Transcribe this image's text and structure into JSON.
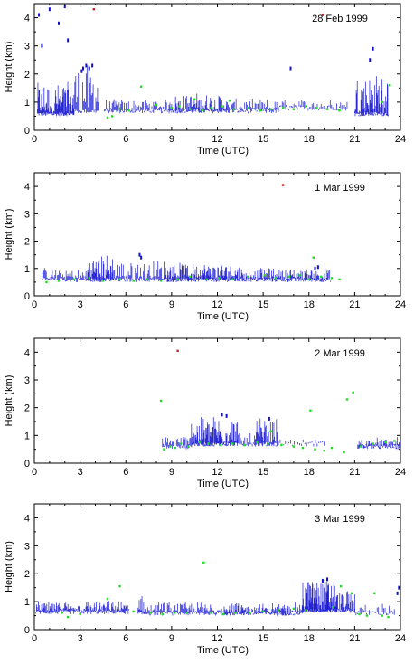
{
  "colors": {
    "cloud_base": "#1010d0",
    "secondary": "#22dd22",
    "outlier": "#cc2222",
    "axis": "#000000"
  },
  "chart_data": [
    {
      "type": "scatter",
      "title": "28 Feb 1999",
      "xlabel": "Time (UTC)",
      "ylabel": "Height (km)",
      "xlim": [
        0,
        24
      ],
      "ylim": [
        0,
        4.5
      ],
      "xticks": [
        0,
        3,
        6,
        9,
        12,
        15,
        18,
        21,
        24
      ],
      "yticks": [
        0,
        1,
        2,
        3,
        4
      ],
      "grid": false,
      "series": [
        {
          "key": "lidar",
          "color": "#1010d0",
          "style": "streak",
          "segments": [
            {
              "start": 0.2,
              "end": 2.6,
              "base": 0.5,
              "top": 1.6,
              "density": 10
            },
            {
              "start": 2.6,
              "end": 4.2,
              "base": 0.6,
              "top": 2.3,
              "density": 6
            },
            {
              "start": 4.6,
              "end": 9.0,
              "base": 0.6,
              "top": 1.0,
              "density": 6
            },
            {
              "start": 9.0,
              "end": 12.6,
              "base": 0.6,
              "top": 1.2,
              "density": 8
            },
            {
              "start": 12.6,
              "end": 16.0,
              "base": 0.6,
              "top": 1.0,
              "density": 6
            },
            {
              "start": 16.0,
              "end": 20.5,
              "base": 0.7,
              "top": 1.0,
              "density": 4
            },
            {
              "start": 21.0,
              "end": 23.2,
              "base": 0.5,
              "top": 1.9,
              "density": 10
            }
          ],
          "points": [
            [
              0.3,
              4.1
            ],
            [
              0.5,
              3.0
            ],
            [
              1.0,
              4.3
            ],
            [
              1.6,
              3.8
            ],
            [
              2.0,
              4.4
            ],
            [
              2.2,
              3.2
            ],
            [
              3.2,
              2.2
            ],
            [
              3.4,
              2.3
            ],
            [
              3.6,
              2.2
            ],
            [
              3.8,
              2.3
            ],
            [
              3.1,
              2.1
            ],
            [
              16.8,
              2.2
            ],
            [
              22.0,
              2.5
            ],
            [
              22.2,
              2.9
            ]
          ]
        },
        {
          "key": "ceilometer",
          "color": "#22dd22",
          "style": "dot",
          "points": [
            [
              4.8,
              0.45
            ],
            [
              5.1,
              0.5
            ],
            [
              5.6,
              0.75
            ],
            [
              6.2,
              0.7
            ],
            [
              7.0,
              1.55
            ],
            [
              8.0,
              0.9
            ],
            [
              9.0,
              0.8
            ],
            [
              9.5,
              0.85
            ],
            [
              10.2,
              0.75
            ],
            [
              11.0,
              0.7
            ],
            [
              11.6,
              0.8
            ],
            [
              12.3,
              0.85
            ],
            [
              13.1,
              0.75
            ],
            [
              14.0,
              0.8
            ],
            [
              14.8,
              0.7
            ],
            [
              15.5,
              0.75
            ],
            [
              16.3,
              0.8
            ],
            [
              17.0,
              0.75
            ],
            [
              17.8,
              0.85
            ],
            [
              18.5,
              0.8
            ],
            [
              19.2,
              0.75
            ],
            [
              20.0,
              0.7
            ],
            [
              22.8,
              1.0
            ],
            [
              23.3,
              1.6
            ],
            [
              10.5,
              1.1
            ],
            [
              12.8,
              1.05
            ]
          ]
        },
        {
          "key": "outlier",
          "color": "#cc2222",
          "style": "dot",
          "points": [
            [
              3.9,
              4.3
            ],
            [
              18.9,
              4.1
            ]
          ]
        }
      ]
    },
    {
      "type": "scatter",
      "title": "1 Mar 1999",
      "xlabel": "Time (UTC)",
      "ylabel": "Height (km)",
      "xlim": [
        0,
        24
      ],
      "ylim": [
        0,
        4.5
      ],
      "xticks": [
        0,
        3,
        6,
        9,
        12,
        15,
        18,
        21,
        24
      ],
      "yticks": [
        0,
        1,
        2,
        3,
        4
      ],
      "grid": false,
      "series": [
        {
          "key": "lidar",
          "color": "#1010d0",
          "style": "streak",
          "segments": [
            {
              "start": 0.5,
              "end": 3.5,
              "base": 0.5,
              "top": 0.9,
              "density": 6
            },
            {
              "start": 3.5,
              "end": 5.2,
              "base": 0.5,
              "top": 1.4,
              "density": 10
            },
            {
              "start": 5.2,
              "end": 8.5,
              "base": 0.5,
              "top": 1.2,
              "density": 6
            },
            {
              "start": 8.5,
              "end": 13.5,
              "base": 0.5,
              "top": 1.1,
              "density": 10
            },
            {
              "start": 13.5,
              "end": 19.4,
              "base": 0.5,
              "top": 0.9,
              "density": 8
            }
          ],
          "points": [
            [
              6.9,
              1.5
            ],
            [
              7.0,
              1.4
            ],
            [
              18.4,
              1.0
            ],
            [
              18.6,
              1.05
            ]
          ]
        },
        {
          "key": "ceilometer",
          "color": "#22dd22",
          "style": "dot",
          "points": [
            [
              0.8,
              0.5
            ],
            [
              1.6,
              0.55
            ],
            [
              2.6,
              0.6
            ],
            [
              3.6,
              0.65
            ],
            [
              4.5,
              0.55
            ],
            [
              5.6,
              0.6
            ],
            [
              6.5,
              0.55
            ],
            [
              7.4,
              0.6
            ],
            [
              8.3,
              0.55
            ],
            [
              9.4,
              0.6
            ],
            [
              10.2,
              0.7
            ],
            [
              11.3,
              0.6
            ],
            [
              12.1,
              0.65
            ],
            [
              13.0,
              0.6
            ],
            [
              14.0,
              0.7
            ],
            [
              15.1,
              0.75
            ],
            [
              15.8,
              0.65
            ],
            [
              16.7,
              0.7
            ],
            [
              17.4,
              0.75
            ],
            [
              18.0,
              0.6
            ],
            [
              18.3,
              1.4
            ],
            [
              18.8,
              0.7
            ],
            [
              19.5,
              0.65
            ],
            [
              20.0,
              0.6
            ]
          ]
        },
        {
          "key": "outlier",
          "color": "#cc2222",
          "style": "dot",
          "points": [
            [
              16.3,
              4.05
            ]
          ]
        }
      ]
    },
    {
      "type": "scatter",
      "title": "2 Mar 1999",
      "xlabel": "Time (UTC)",
      "ylabel": "Height (km)",
      "xlim": [
        0,
        24
      ],
      "ylim": [
        0,
        4.5
      ],
      "xticks": [
        0,
        3,
        6,
        9,
        12,
        15,
        18,
        21,
        24
      ],
      "yticks": [
        0,
        1,
        2,
        3,
        4
      ],
      "grid": false,
      "series": [
        {
          "key": "lidar",
          "color": "#1010d0",
          "style": "streak",
          "segments": [
            {
              "start": 8.4,
              "end": 10.3,
              "base": 0.5,
              "top": 0.9,
              "density": 6
            },
            {
              "start": 10.3,
              "end": 13.3,
              "base": 0.6,
              "top": 1.6,
              "density": 10
            },
            {
              "start": 13.3,
              "end": 14.5,
              "base": 0.6,
              "top": 1.0,
              "density": 5
            },
            {
              "start": 14.5,
              "end": 16.0,
              "base": 0.6,
              "top": 1.5,
              "density": 8
            },
            {
              "start": 16.0,
              "end": 19.0,
              "base": 0.6,
              "top": 0.75,
              "density": 3
            },
            {
              "start": 21.2,
              "end": 24.0,
              "base": 0.5,
              "top": 0.8,
              "density": 8
            }
          ],
          "points": [
            [
              12.3,
              1.75
            ],
            [
              12.6,
              1.7
            ],
            [
              15.4,
              1.6
            ]
          ]
        },
        {
          "key": "ceilometer",
          "color": "#22dd22",
          "style": "dot",
          "points": [
            [
              8.3,
              2.25
            ],
            [
              8.5,
              0.5
            ],
            [
              8.9,
              0.6
            ],
            [
              9.2,
              0.55
            ],
            [
              9.6,
              0.7
            ],
            [
              10.1,
              0.6
            ],
            [
              10.8,
              0.75
            ],
            [
              11.4,
              0.7
            ],
            [
              12.2,
              0.65
            ],
            [
              13.0,
              0.7
            ],
            [
              13.8,
              0.65
            ],
            [
              14.6,
              0.75
            ],
            [
              15.3,
              0.7
            ],
            [
              16.2,
              0.65
            ],
            [
              17.0,
              0.6
            ],
            [
              17.6,
              0.55
            ],
            [
              18.1,
              1.9
            ],
            [
              18.4,
              0.5
            ],
            [
              19.0,
              0.45
            ],
            [
              19.5,
              0.55
            ],
            [
              20.3,
              0.4
            ],
            [
              20.5,
              2.3
            ],
            [
              20.9,
              2.55
            ],
            [
              21.4,
              0.6
            ],
            [
              22.2,
              0.7
            ],
            [
              23.0,
              0.75
            ],
            [
              23.6,
              0.8
            ],
            [
              15.5,
              1.15
            ]
          ]
        },
        {
          "key": "outlier",
          "color": "#cc2222",
          "style": "dot",
          "points": [
            [
              9.4,
              4.05
            ]
          ]
        }
      ]
    },
    {
      "type": "scatter",
      "title": "3 Mar 1999",
      "xlabel": "Time (UTC)",
      "ylabel": "Height (km)",
      "xlim": [
        0,
        24
      ],
      "ylim": [
        0,
        4.5
      ],
      "xticks": [
        0,
        3,
        6,
        9,
        12,
        15,
        18,
        21,
        24
      ],
      "yticks": [
        0,
        1,
        2,
        3,
        4
      ],
      "grid": false,
      "series": [
        {
          "key": "lidar",
          "color": "#1010d0",
          "style": "streak",
          "segments": [
            {
              "start": 0.1,
              "end": 6.2,
              "base": 0.55,
              "top": 0.9,
              "density": 8
            },
            {
              "start": 6.8,
              "end": 7.2,
              "base": 0.5,
              "top": 1.2,
              "density": 10
            },
            {
              "start": 7.2,
              "end": 12.5,
              "base": 0.5,
              "top": 0.9,
              "density": 6
            },
            {
              "start": 12.5,
              "end": 17.6,
              "base": 0.5,
              "top": 0.85,
              "density": 8
            },
            {
              "start": 17.6,
              "end": 19.8,
              "base": 0.6,
              "top": 1.75,
              "density": 12
            },
            {
              "start": 19.8,
              "end": 21.0,
              "base": 0.6,
              "top": 1.3,
              "density": 8
            },
            {
              "start": 21.0,
              "end": 23.6,
              "base": 0.5,
              "top": 0.8,
              "density": 4
            }
          ],
          "points": [
            [
              18.9,
              1.75
            ],
            [
              19.2,
              1.8
            ],
            [
              23.8,
              1.3
            ],
            [
              23.9,
              1.5
            ]
          ]
        },
        {
          "key": "ceilometer",
          "color": "#22dd22",
          "style": "dot",
          "points": [
            [
              1.8,
              0.6
            ],
            [
              2.2,
              0.45
            ],
            [
              3.0,
              0.55
            ],
            [
              4.8,
              1.1
            ],
            [
              5.6,
              1.55
            ],
            [
              6.5,
              0.65
            ],
            [
              7.6,
              0.6
            ],
            [
              8.4,
              0.55
            ],
            [
              9.2,
              0.6
            ],
            [
              10.0,
              0.6
            ],
            [
              11.1,
              2.4
            ],
            [
              11.6,
              0.6
            ],
            [
              12.4,
              0.55
            ],
            [
              13.2,
              0.6
            ],
            [
              14.1,
              0.6
            ],
            [
              15.0,
              0.65
            ],
            [
              16.0,
              0.7
            ],
            [
              17.0,
              0.75
            ],
            [
              17.8,
              0.7
            ],
            [
              19.6,
              0.8
            ],
            [
              20.1,
              1.55
            ],
            [
              20.8,
              1.3
            ],
            [
              21.3,
              0.55
            ],
            [
              21.8,
              0.5
            ],
            [
              22.3,
              1.3
            ],
            [
              22.8,
              0.5
            ],
            [
              23.2,
              0.45
            ]
          ]
        },
        {
          "key": "outlier",
          "color": "#cc2222",
          "style": "dot",
          "points": []
        }
      ]
    }
  ]
}
